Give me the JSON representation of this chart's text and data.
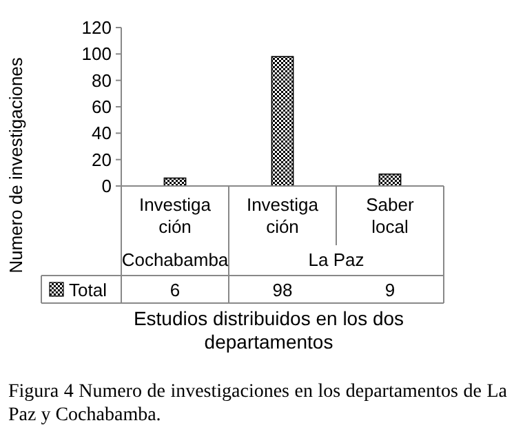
{
  "chart_data": {
    "type": "bar",
    "ylabel": "Numero de investigaciones",
    "xlabel": "Estudios distribuidos en los dos departamentos",
    "categories": [
      "Investiga ción",
      "Investiga ción",
      "Saber local"
    ],
    "series": [
      {
        "name": "Total",
        "color": "#000000",
        "values": [
          6,
          98,
          9
        ]
      }
    ],
    "ylim": [
      0,
      120
    ],
    "yticks": [
      0,
      20,
      40,
      60,
      80,
      100,
      120
    ],
    "grid": false,
    "data_labels": true,
    "legend": "bottom",
    "annotations": [
      {
        "text": "Cochabamba"
      },
      {
        "text": "La Paz"
      },
      "Figura 4 Numero de investigaciones en los departamentos de La Paz y Cochabamba."
    ]
  }
}
